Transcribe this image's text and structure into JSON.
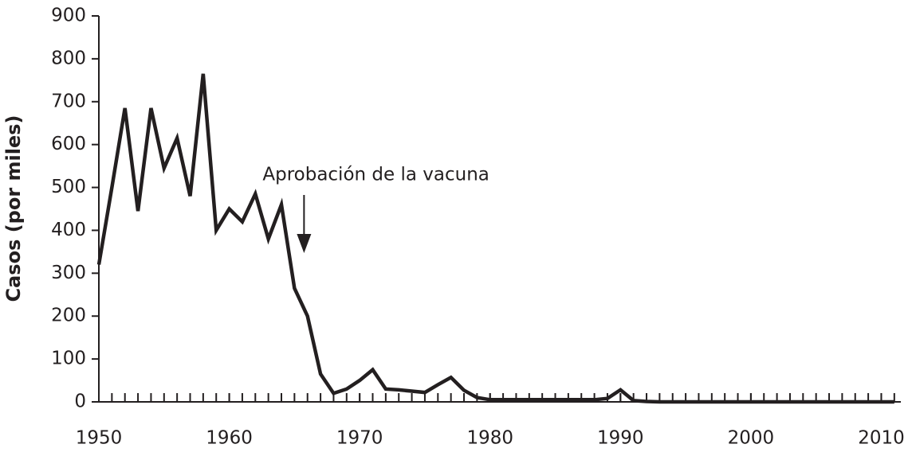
{
  "chart_data": {
    "type": "line",
    "ylabel": "Casos (por miles)",
    "x": [
      1950,
      1951,
      1952,
      1953,
      1954,
      1955,
      1956,
      1957,
      1958,
      1959,
      1960,
      1961,
      1962,
      1963,
      1964,
      1965,
      1966,
      1967,
      1968,
      1969,
      1970,
      1971,
      1972,
      1973,
      1974,
      1975,
      1976,
      1977,
      1978,
      1979,
      1980,
      1981,
      1982,
      1983,
      1984,
      1985,
      1986,
      1987,
      1988,
      1989,
      1990,
      1991,
      1992,
      1993,
      1994,
      1995,
      1996,
      1997,
      1998,
      1999,
      2000,
      2001,
      2002,
      2003,
      2004,
      2005,
      2006,
      2007,
      2008,
      2009,
      2010,
      2011
    ],
    "series": [
      {
        "color": "#231f20",
        "values": [
          320,
          500,
          685,
          445,
          685,
          545,
          615,
          480,
          765,
          400,
          450,
          420,
          485,
          380,
          460,
          265,
          200,
          65,
          20,
          30,
          50,
          75,
          30,
          28,
          25,
          22,
          40,
          57,
          27,
          10,
          5,
          5,
          5,
          5,
          5,
          5,
          5,
          5,
          5,
          8,
          28,
          3,
          1,
          0,
          0,
          0,
          0,
          0,
          0,
          0,
          0,
          0,
          0,
          0,
          0,
          0,
          0,
          0,
          0,
          0,
          0,
          0
        ]
      }
    ],
    "xlim": [
      1950,
      2011.5
    ],
    "xticks": [
      1950,
      1960,
      1970,
      1980,
      1990,
      2000,
      2010
    ],
    "ylim": [
      0,
      900
    ],
    "yticks": [
      0,
      100,
      200,
      300,
      400,
      500,
      600,
      700,
      800,
      900
    ],
    "annotation": {
      "text": "Aprobación de la vacuna",
      "x": 1965
    }
  }
}
